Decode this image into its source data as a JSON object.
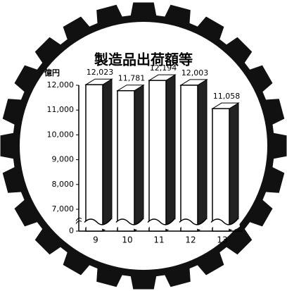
{
  "chart_data": {
    "type": "bar",
    "title": "製造品出荷額等",
    "unit_label": "億円",
    "categories": [
      "9",
      "10",
      "11",
      "12",
      "13"
    ],
    "values": [
      12023,
      11781,
      12194,
      12003,
      11058
    ],
    "value_labels": [
      "12,023",
      "11,781",
      "12,194",
      "12,003",
      "11,058"
    ],
    "ylim": [
      0,
      12000
    ],
    "yticks": [
      0,
      {
        "value": 7000,
        "label": "7,000"
      },
      {
        "value": 8000,
        "label": "8,000"
      },
      {
        "value": 9000,
        "label": "9,000"
      },
      {
        "value": 10000,
        "label": "10,000"
      },
      {
        "value": 11000,
        "label": "11,000"
      },
      {
        "value": 12000,
        "label": "12,000"
      }
    ],
    "axis_break": true,
    "color": "#ffffff",
    "side_color": "#222222"
  }
}
